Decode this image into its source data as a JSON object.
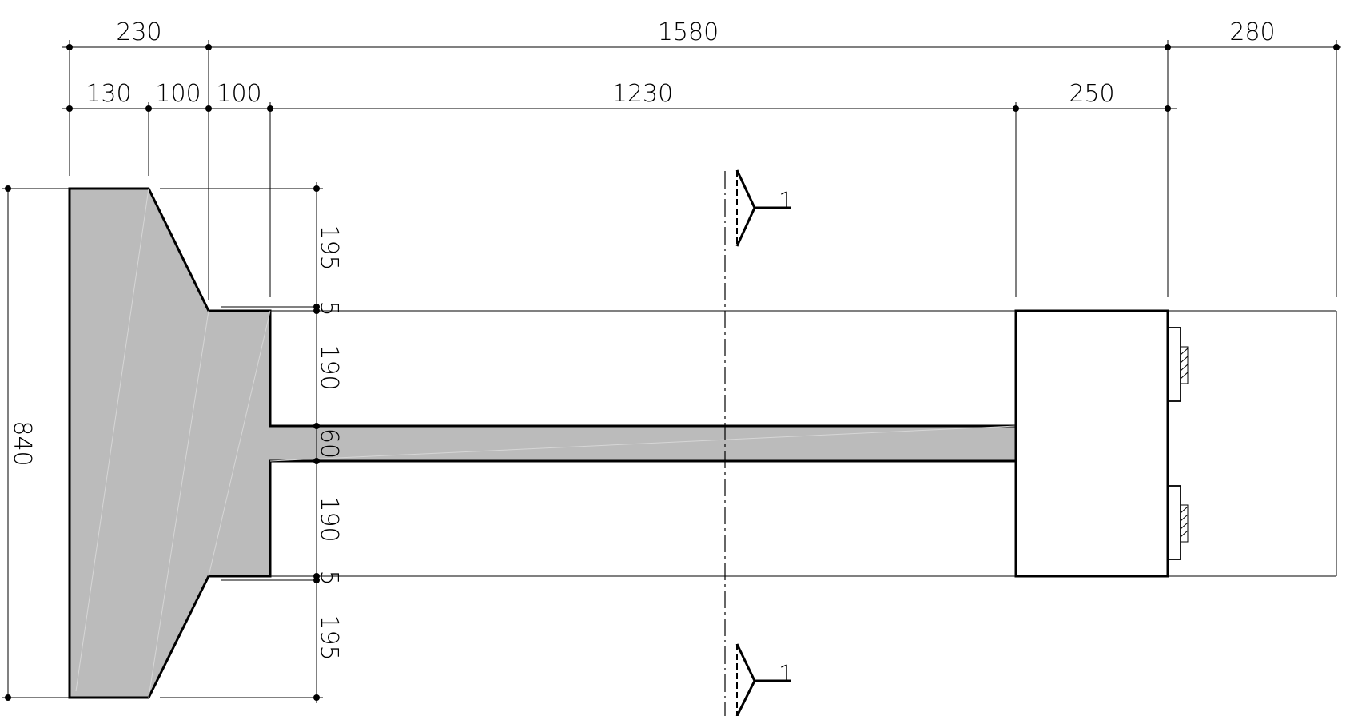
{
  "dimensions": {
    "top_row1": [
      "230",
      "1580",
      "280"
    ],
    "top_row2": [
      "130",
      "100",
      "100",
      "1230",
      "250"
    ],
    "left_total": "840",
    "vertical": [
      "195",
      "5",
      "190",
      "60",
      "190",
      "5",
      "195"
    ]
  },
  "section_marks": {
    "top": "1",
    "bottom": "1"
  },
  "colors": {
    "concrete": "#bbbbbb",
    "line": "#000000"
  }
}
